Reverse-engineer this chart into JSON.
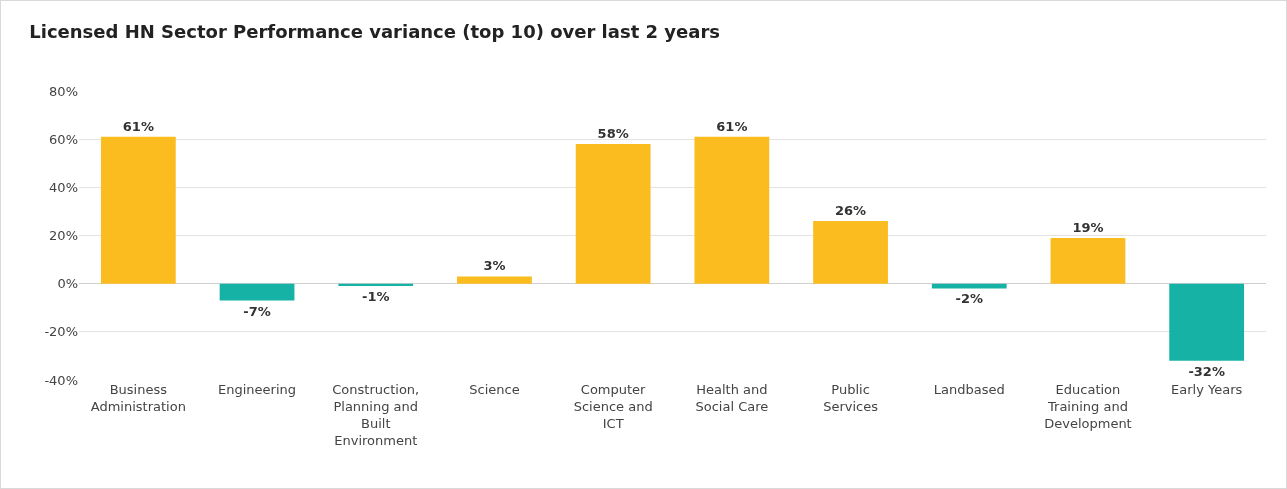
{
  "chart_data": {
    "type": "bar",
    "title": "Licensed HN Sector Performance variance (top 10) over last 2 years",
    "categories": [
      "Business Administration",
      "Engineering",
      "Construction, Planning and Built Environment",
      "Science",
      "Computer Science and ICT",
      "Health and Social Care",
      "Public Services",
      "Landbased",
      "Education Training and Development",
      "Early Years"
    ],
    "values": [
      61,
      -7,
      -1,
      3,
      58,
      61,
      26,
      -2,
      19,
      -32
    ],
    "colors": [
      "#fbbc1f",
      "#15b2a5",
      "#15b2a5",
      "#fbbc1f",
      "#fbbc1f",
      "#fbbc1f",
      "#fbbc1f",
      "#15b2a5",
      "#fbbc1f",
      "#15b2a5"
    ],
    "value_labels": [
      "61%",
      "-7%",
      "-1%",
      "3%",
      "58%",
      "61%",
      "26%",
      "-2%",
      "19%",
      "-32%"
    ],
    "ylim": [
      -40,
      80
    ],
    "yticks": [
      {
        "value": -40,
        "label": "-40%"
      },
      {
        "value": -20,
        "label": "-20%"
      },
      {
        "value": 0,
        "label": "0%"
      },
      {
        "value": 20,
        "label": "20%"
      },
      {
        "value": 40,
        "label": "40%"
      },
      {
        "value": 60,
        "label": "60%"
      },
      {
        "value": 80,
        "label": "80%"
      }
    ],
    "grid": "y"
  }
}
